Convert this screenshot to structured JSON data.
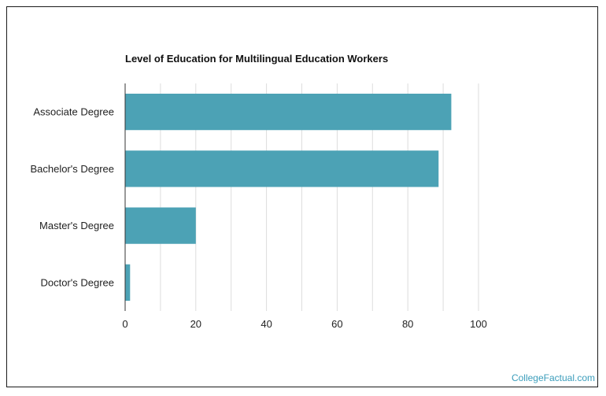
{
  "chart_data": {
    "type": "bar",
    "orientation": "horizontal",
    "title": "Level of Education for Multilingual Education Workers",
    "categories": [
      "Associate Degree",
      "Bachelor's Degree",
      "Master's Degree",
      "Doctor's Degree"
    ],
    "values": [
      92.3,
      88.7,
      20.0,
      1.4
    ],
    "xlim": [
      0,
      100
    ],
    "xticks": [
      0,
      20,
      40,
      60,
      80,
      100
    ],
    "grid": true,
    "legend": "none",
    "bar_color": "#4ca2b5",
    "grid_color": "#dddddd"
  },
  "watermark": "CollegeFactual.com",
  "colors": {
    "watermark": "#3b9dbb"
  }
}
